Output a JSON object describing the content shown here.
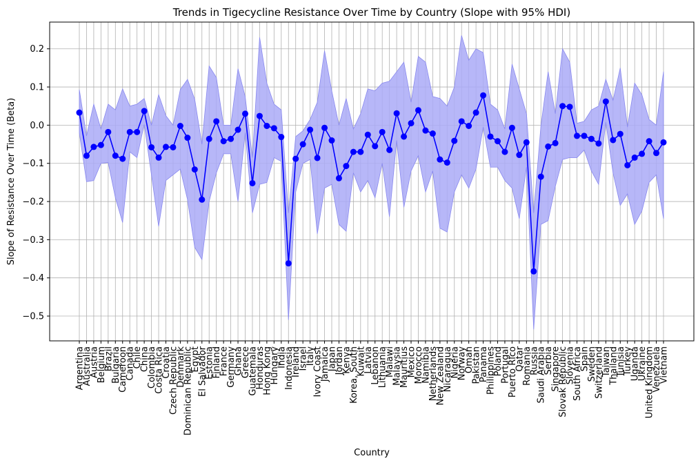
{
  "chart_data": {
    "type": "line",
    "title": "Trends in Tigecycline Resistance Over Time by Country (Slope with 95% HDI)",
    "xlabel": "Country",
    "ylabel": "Slope of Resistance Over Time (Beta)",
    "ylim": [
      -0.565,
      0.27
    ],
    "yticks": [
      0.2,
      0.1,
      0.0,
      -0.1,
      -0.2,
      -0.3,
      -0.4,
      -0.5
    ],
    "ytick_labels": [
      "0.2",
      "0.1",
      "0.0",
      "−0.1",
      "−0.2",
      "−0.3",
      "−0.4",
      "−0.5"
    ],
    "grid": true,
    "colors": {
      "line": "#0000ff",
      "band": "#aaaaf7",
      "band_edge": "#8888ee",
      "grid": "#b0b0b0"
    },
    "categories": [
      "Argentina",
      "Australia",
      "Austria",
      "Belgium",
      "Brazil",
      "Bulgaria",
      "Cameroon",
      "Canada",
      "Chile",
      "China",
      "Colombia",
      "Costa Rica",
      "Croatia",
      "Czech Republic",
      "Denmark",
      "Dominican Republic",
      "Egypt",
      "El Salvador",
      "Estonia",
      "Finland",
      "France",
      "Germany",
      "Ghana",
      "Greece",
      "Guatemala",
      "Honduras",
      "Hong Kong",
      "Hungary",
      "India",
      "Indonesia",
      "Ireland",
      "Israel",
      "Italy",
      "Ivory Coast",
      "Jamaica",
      "Japan",
      "Jordan",
      "Kenya",
      "Korea, South",
      "Kuwait",
      "Latvia",
      "Lebanon",
      "Lithuania",
      "Malawi",
      "Malaysia",
      "Mauritius",
      "Mexico",
      "Morocco",
      "Namibia",
      "Netherlands",
      "New Zealand",
      "Nicaragua",
      "Nigeria",
      "Norway",
      "Oman",
      "Pakistan",
      "Panama",
      "Philippines",
      "Poland",
      "Portugal",
      "Puerto Rico",
      "Qatar",
      "Romania",
      "Russia",
      "Saudi Arabia",
      "Serbia",
      "Singapore",
      "Slovak Republic",
      "Slovenia",
      "South Africa",
      "Spain",
      "Sweden",
      "Switzerland",
      "Taiwan",
      "Thailand",
      "Tunisia",
      "Turkey",
      "Uganda",
      "Ukraine",
      "United Kingdom",
      "Venezuela",
      "Vietnam"
    ],
    "series": [
      {
        "values": [
          0.033,
          -0.08,
          -0.057,
          -0.052,
          -0.018,
          -0.08,
          -0.088,
          -0.018,
          -0.018,
          0.037,
          -0.058,
          -0.085,
          -0.057,
          -0.058,
          -0.002,
          -0.033,
          -0.116,
          -0.195,
          -0.036,
          0.01,
          -0.042,
          -0.036,
          -0.012,
          0.03,
          -0.152,
          0.024,
          -0.002,
          -0.008,
          -0.031,
          -0.362,
          -0.088,
          -0.05,
          -0.012,
          -0.086,
          -0.007,
          -0.04,
          -0.139,
          -0.107,
          -0.07,
          -0.07,
          -0.025,
          -0.055,
          -0.018,
          -0.065,
          0.031,
          -0.03,
          0.005,
          0.039,
          -0.014,
          -0.022,
          -0.09,
          -0.098,
          -0.041,
          0.01,
          -0.002,
          0.033,
          0.078,
          -0.03,
          -0.042,
          -0.07,
          -0.007,
          -0.078,
          -0.045,
          -0.383,
          -0.135,
          -0.056,
          -0.047,
          0.05,
          0.048,
          -0.028,
          -0.028,
          -0.036,
          -0.048,
          0.062,
          -0.039,
          -0.023,
          -0.105,
          -0.085,
          -0.075,
          -0.042,
          -0.073,
          -0.045
        ],
        "hdi_lower": [
          -0.02,
          -0.148,
          -0.145,
          -0.1,
          -0.098,
          -0.19,
          -0.255,
          -0.07,
          -0.085,
          0.002,
          -0.13,
          -0.265,
          -0.145,
          -0.13,
          -0.115,
          -0.195,
          -0.32,
          -0.352,
          -0.2,
          -0.125,
          -0.075,
          -0.075,
          -0.2,
          -0.02,
          -0.23,
          -0.155,
          -0.15,
          -0.085,
          -0.095,
          -0.51,
          -0.175,
          -0.1,
          -0.09,
          -0.285,
          -0.165,
          -0.155,
          -0.26,
          -0.278,
          -0.125,
          -0.175,
          -0.145,
          -0.19,
          -0.1,
          -0.24,
          -0.04,
          -0.215,
          -0.12,
          -0.08,
          -0.175,
          -0.12,
          -0.27,
          -0.28,
          -0.175,
          -0.13,
          -0.165,
          -0.115,
          -0.005,
          -0.11,
          -0.11,
          -0.145,
          -0.165,
          -0.245,
          -0.11,
          -0.535,
          -0.26,
          -0.25,
          -0.16,
          -0.09,
          -0.085,
          -0.085,
          -0.065,
          -0.12,
          -0.155,
          0.008,
          -0.125,
          -0.21,
          -0.18,
          -0.26,
          -0.225,
          -0.15,
          -0.13,
          -0.245
        ],
        "hdi_upper": [
          0.093,
          -0.028,
          0.055,
          -0.01,
          0.055,
          0.04,
          0.095,
          0.05,
          0.055,
          0.07,
          0.0,
          0.08,
          0.025,
          0.0,
          0.093,
          0.12,
          0.068,
          -0.05,
          0.155,
          0.125,
          0.0,
          0.0,
          0.148,
          0.075,
          -0.085,
          0.23,
          0.11,
          0.055,
          0.04,
          -0.23,
          -0.03,
          -0.015,
          0.015,
          0.06,
          0.195,
          0.09,
          0.0,
          0.07,
          -0.01,
          0.03,
          0.095,
          0.09,
          0.11,
          0.115,
          0.14,
          0.165,
          0.06,
          0.18,
          0.165,
          0.075,
          0.07,
          0.05,
          0.1,
          0.235,
          0.17,
          0.2,
          0.19,
          0.055,
          0.04,
          -0.01,
          0.16,
          0.095,
          0.03,
          -0.23,
          -0.002,
          0.14,
          0.03,
          0.2,
          0.165,
          0.005,
          0.01,
          0.04,
          0.05,
          0.12,
          0.065,
          0.15,
          -0.005,
          0.11,
          0.08,
          0.015,
          0.0,
          0.14
        ]
      }
    ]
  }
}
